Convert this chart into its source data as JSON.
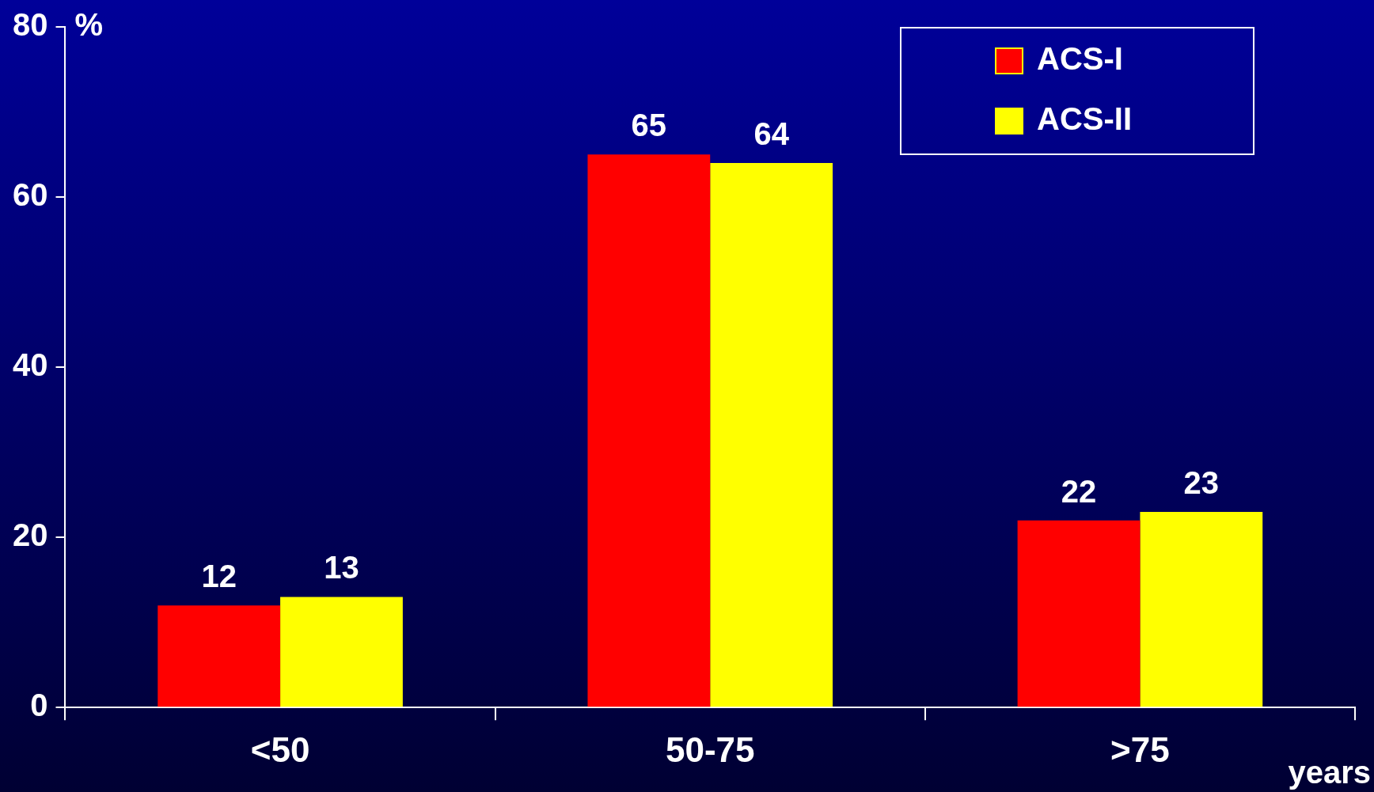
{
  "chart_data": {
    "type": "bar",
    "categories": [
      "<50",
      "50-75",
      ">75"
    ],
    "series": [
      {
        "name": "ACS-I",
        "color": "#ff0000",
        "values": [
          12,
          65,
          22
        ]
      },
      {
        "name": "ACS-II",
        "color": "#ffff00",
        "values": [
          13,
          64,
          23
        ]
      }
    ],
    "ylim": [
      0,
      80
    ],
    "yticks": [
      0,
      20,
      40,
      60,
      80
    ],
    "ylabel": "%",
    "xlabel": "years",
    "grid": false,
    "legend": "top right",
    "data_labels": true
  }
}
